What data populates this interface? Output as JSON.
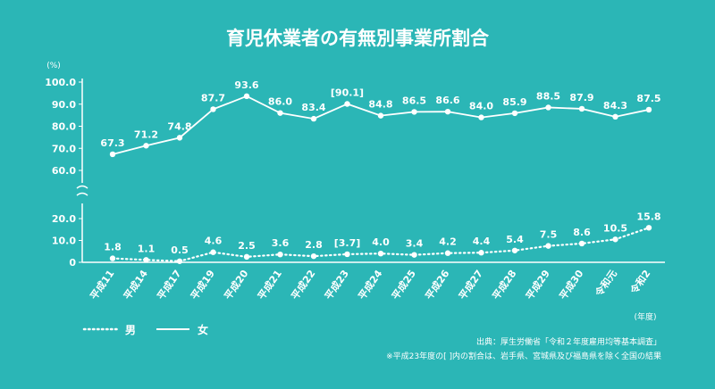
{
  "chart_data": {
    "type": "line",
    "title": "育児休業者の有無別事業所割合",
    "unit": "(%)",
    "x_unit": "(年度)",
    "categories": [
      "平成11",
      "平成14",
      "平成17",
      "平成19",
      "平成20",
      "平成21",
      "平成22",
      "平成23",
      "平成24",
      "平成25",
      "平成26",
      "平成27",
      "平成28",
      "平成29",
      "平成30",
      "令和元",
      "令和2"
    ],
    "series": [
      {
        "name": "女",
        "style": "solid",
        "values": [
          67.3,
          71.2,
          74.8,
          87.7,
          93.6,
          86.0,
          83.4,
          90.1,
          84.8,
          86.5,
          86.6,
          84.0,
          85.9,
          88.5,
          87.9,
          84.3,
          87.5
        ],
        "labels": [
          "67.3",
          "71.2",
          "74.8",
          "87.7",
          "93.6",
          "86.0",
          "83.4",
          "[90.1]",
          "84.8",
          "86.5",
          "86.6",
          "84.0",
          "85.9",
          "88.5",
          "87.9",
          "84.3",
          "87.5"
        ]
      },
      {
        "name": "男",
        "style": "dotted",
        "values": [
          1.8,
          1.1,
          0.5,
          4.6,
          2.5,
          3.6,
          2.8,
          3.7,
          4.0,
          3.4,
          4.2,
          4.4,
          5.4,
          7.5,
          8.6,
          10.5,
          15.8
        ],
        "labels": [
          "1.8",
          "1.1",
          "0.5",
          "4.6",
          "2.5",
          "3.6",
          "2.8",
          "[3.7]",
          "4.0",
          "3.4",
          "4.2",
          "4.4",
          "5.4",
          "7.5",
          "8.6",
          "10.5",
          "15.8"
        ]
      }
    ],
    "y_upper_ticks": [
      "100.0",
      "90.0",
      "80.0",
      "70.0",
      "60.0"
    ],
    "y_upper_range": [
      60,
      100
    ],
    "y_lower_ticks": [
      "20.0",
      "10.0",
      "0"
    ],
    "y_lower_range": [
      0,
      20
    ],
    "axis_break": true,
    "grid": false,
    "legend": [
      {
        "label": "男",
        "style": "dotted"
      },
      {
        "label": "女",
        "style": "solid"
      }
    ]
  },
  "notes": {
    "source": "出典：厚生労働省「令和２年度雇用均等基本調査」",
    "footnote": "※平成23年度の[ ]内の割合は、岩手県、宮城県及び福島県を除く全国の結果"
  }
}
